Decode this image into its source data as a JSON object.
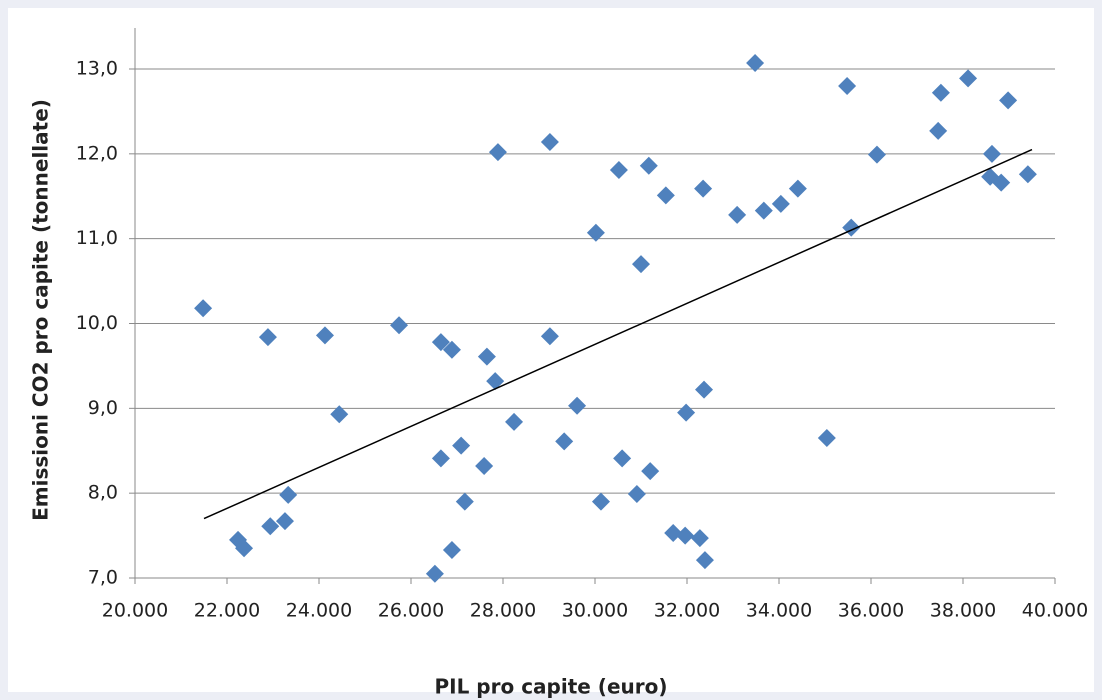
{
  "chart_data": {
    "type": "scatter",
    "x_label": "PIL pro capite (euro)",
    "y_label": "Emissioni CO2 pro capite (tonnellate)",
    "series": [
      {
        "color": "#4f81bd",
        "x": [
          21480,
          22240,
          22370,
          22890,
          22940,
          23260,
          23330,
          24130,
          24440,
          25740,
          26520,
          26650,
          26650,
          26890,
          26890,
          27090,
          27170,
          27590,
          27650,
          27830,
          27890,
          28240,
          29020,
          29020,
          29330,
          29610,
          30020,
          30130,
          30520,
          30590,
          30910,
          31000,
          31170,
          31200,
          31540,
          31700,
          31960,
          31980,
          32280,
          32350,
          32370,
          32390,
          33090,
          33480,
          33670,
          34040,
          34410,
          35040,
          35480,
          35570,
          36130,
          37460,
          37520,
          38110,
          38590,
          38630,
          38830,
          38980,
          39410
        ],
        "values": [
          10.18,
          7.45,
          7.35,
          9.84,
          7.61,
          7.67,
          7.98,
          9.86,
          8.93,
          9.98,
          7.05,
          9.78,
          8.41,
          9.69,
          7.33,
          8.56,
          7.9,
          8.32,
          9.61,
          9.32,
          12.02,
          8.84,
          12.14,
          9.85,
          8.61,
          9.03,
          11.07,
          7.9,
          11.81,
          8.41,
          7.99,
          10.7,
          11.86,
          8.26,
          11.51,
          7.53,
          7.5,
          8.95,
          7.47,
          11.59,
          9.22,
          7.21,
          11.28,
          13.07,
          11.33,
          11.41,
          11.59,
          8.65,
          12.8,
          11.13,
          11.99,
          12.27,
          12.72,
          12.89,
          11.73,
          12.0,
          11.66,
          12.63,
          11.76
        ]
      }
    ],
    "trendline": {
      "color": "#000000",
      "x": [
        21500,
        39500
      ],
      "values": [
        7.7,
        12.05
      ]
    },
    "xlim": [
      20000,
      40000
    ],
    "xticks": [
      {
        "value": 20000,
        "label": "20.000"
      },
      {
        "value": 22000,
        "label": "22.000"
      },
      {
        "value": 24000,
        "label": "24.000"
      },
      {
        "value": 26000,
        "label": "26.000"
      },
      {
        "value": 28000,
        "label": "28.000"
      },
      {
        "value": 30000,
        "label": "30.000"
      },
      {
        "value": 32000,
        "label": "32.000"
      },
      {
        "value": 34000,
        "label": "34.000"
      },
      {
        "value": 36000,
        "label": "36.000"
      },
      {
        "value": 38000,
        "label": "38.000"
      },
      {
        "value": 40000,
        "label": "40.000"
      }
    ],
    "ylim": [
      7,
      13
    ],
    "yticks": [
      {
        "value": 7,
        "label": "7,0"
      },
      {
        "value": 8,
        "label": "8,0"
      },
      {
        "value": 9,
        "label": "9,0"
      },
      {
        "value": 10,
        "label": "10,0"
      },
      {
        "value": 11,
        "label": "11,0"
      },
      {
        "value": 12,
        "label": "12,0"
      },
      {
        "value": 13,
        "label": "13,0"
      }
    ],
    "grid": true
  }
}
